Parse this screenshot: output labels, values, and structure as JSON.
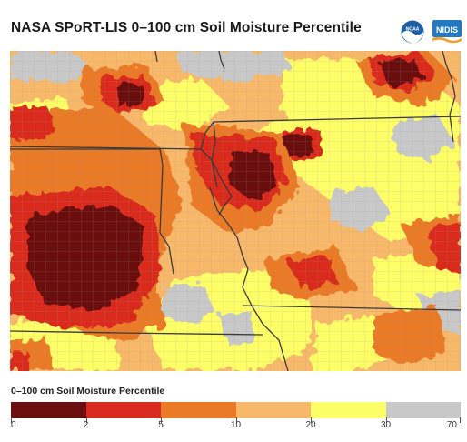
{
  "header": {
    "title": "NASA SPoRT-LIS 0–100 cm Soil Moisture Percentile",
    "logos": [
      {
        "name": "NOAA",
        "label": "NOAA"
      },
      {
        "name": "NIDIS",
        "label": "NIDIS"
      }
    ]
  },
  "legend": {
    "title": "0–100 cm Soil Moisture Percentile",
    "bins": [
      {
        "from": 0,
        "to": 2,
        "color": "#6b0f0f"
      },
      {
        "from": 2,
        "to": 5,
        "color": "#d92b1f"
      },
      {
        "from": 5,
        "to": 10,
        "color": "#ea7a26"
      },
      {
        "from": 10,
        "to": 20,
        "color": "#f8b86a"
      },
      {
        "from": 20,
        "to": 30,
        "color": "#fefe66"
      },
      {
        "from": 30,
        "to": 70,
        "color": "#c8c8c8"
      }
    ],
    "tick_labels": [
      "0",
      "2",
      "5",
      "10",
      "20",
      "30",
      "70"
    ]
  },
  "colors": {
    "border_state": "#3a3a3a",
    "border_county": "#9a9a9a",
    "noaa_blue": "#1f5fa8",
    "nidis_blue": "#2479c2"
  }
}
